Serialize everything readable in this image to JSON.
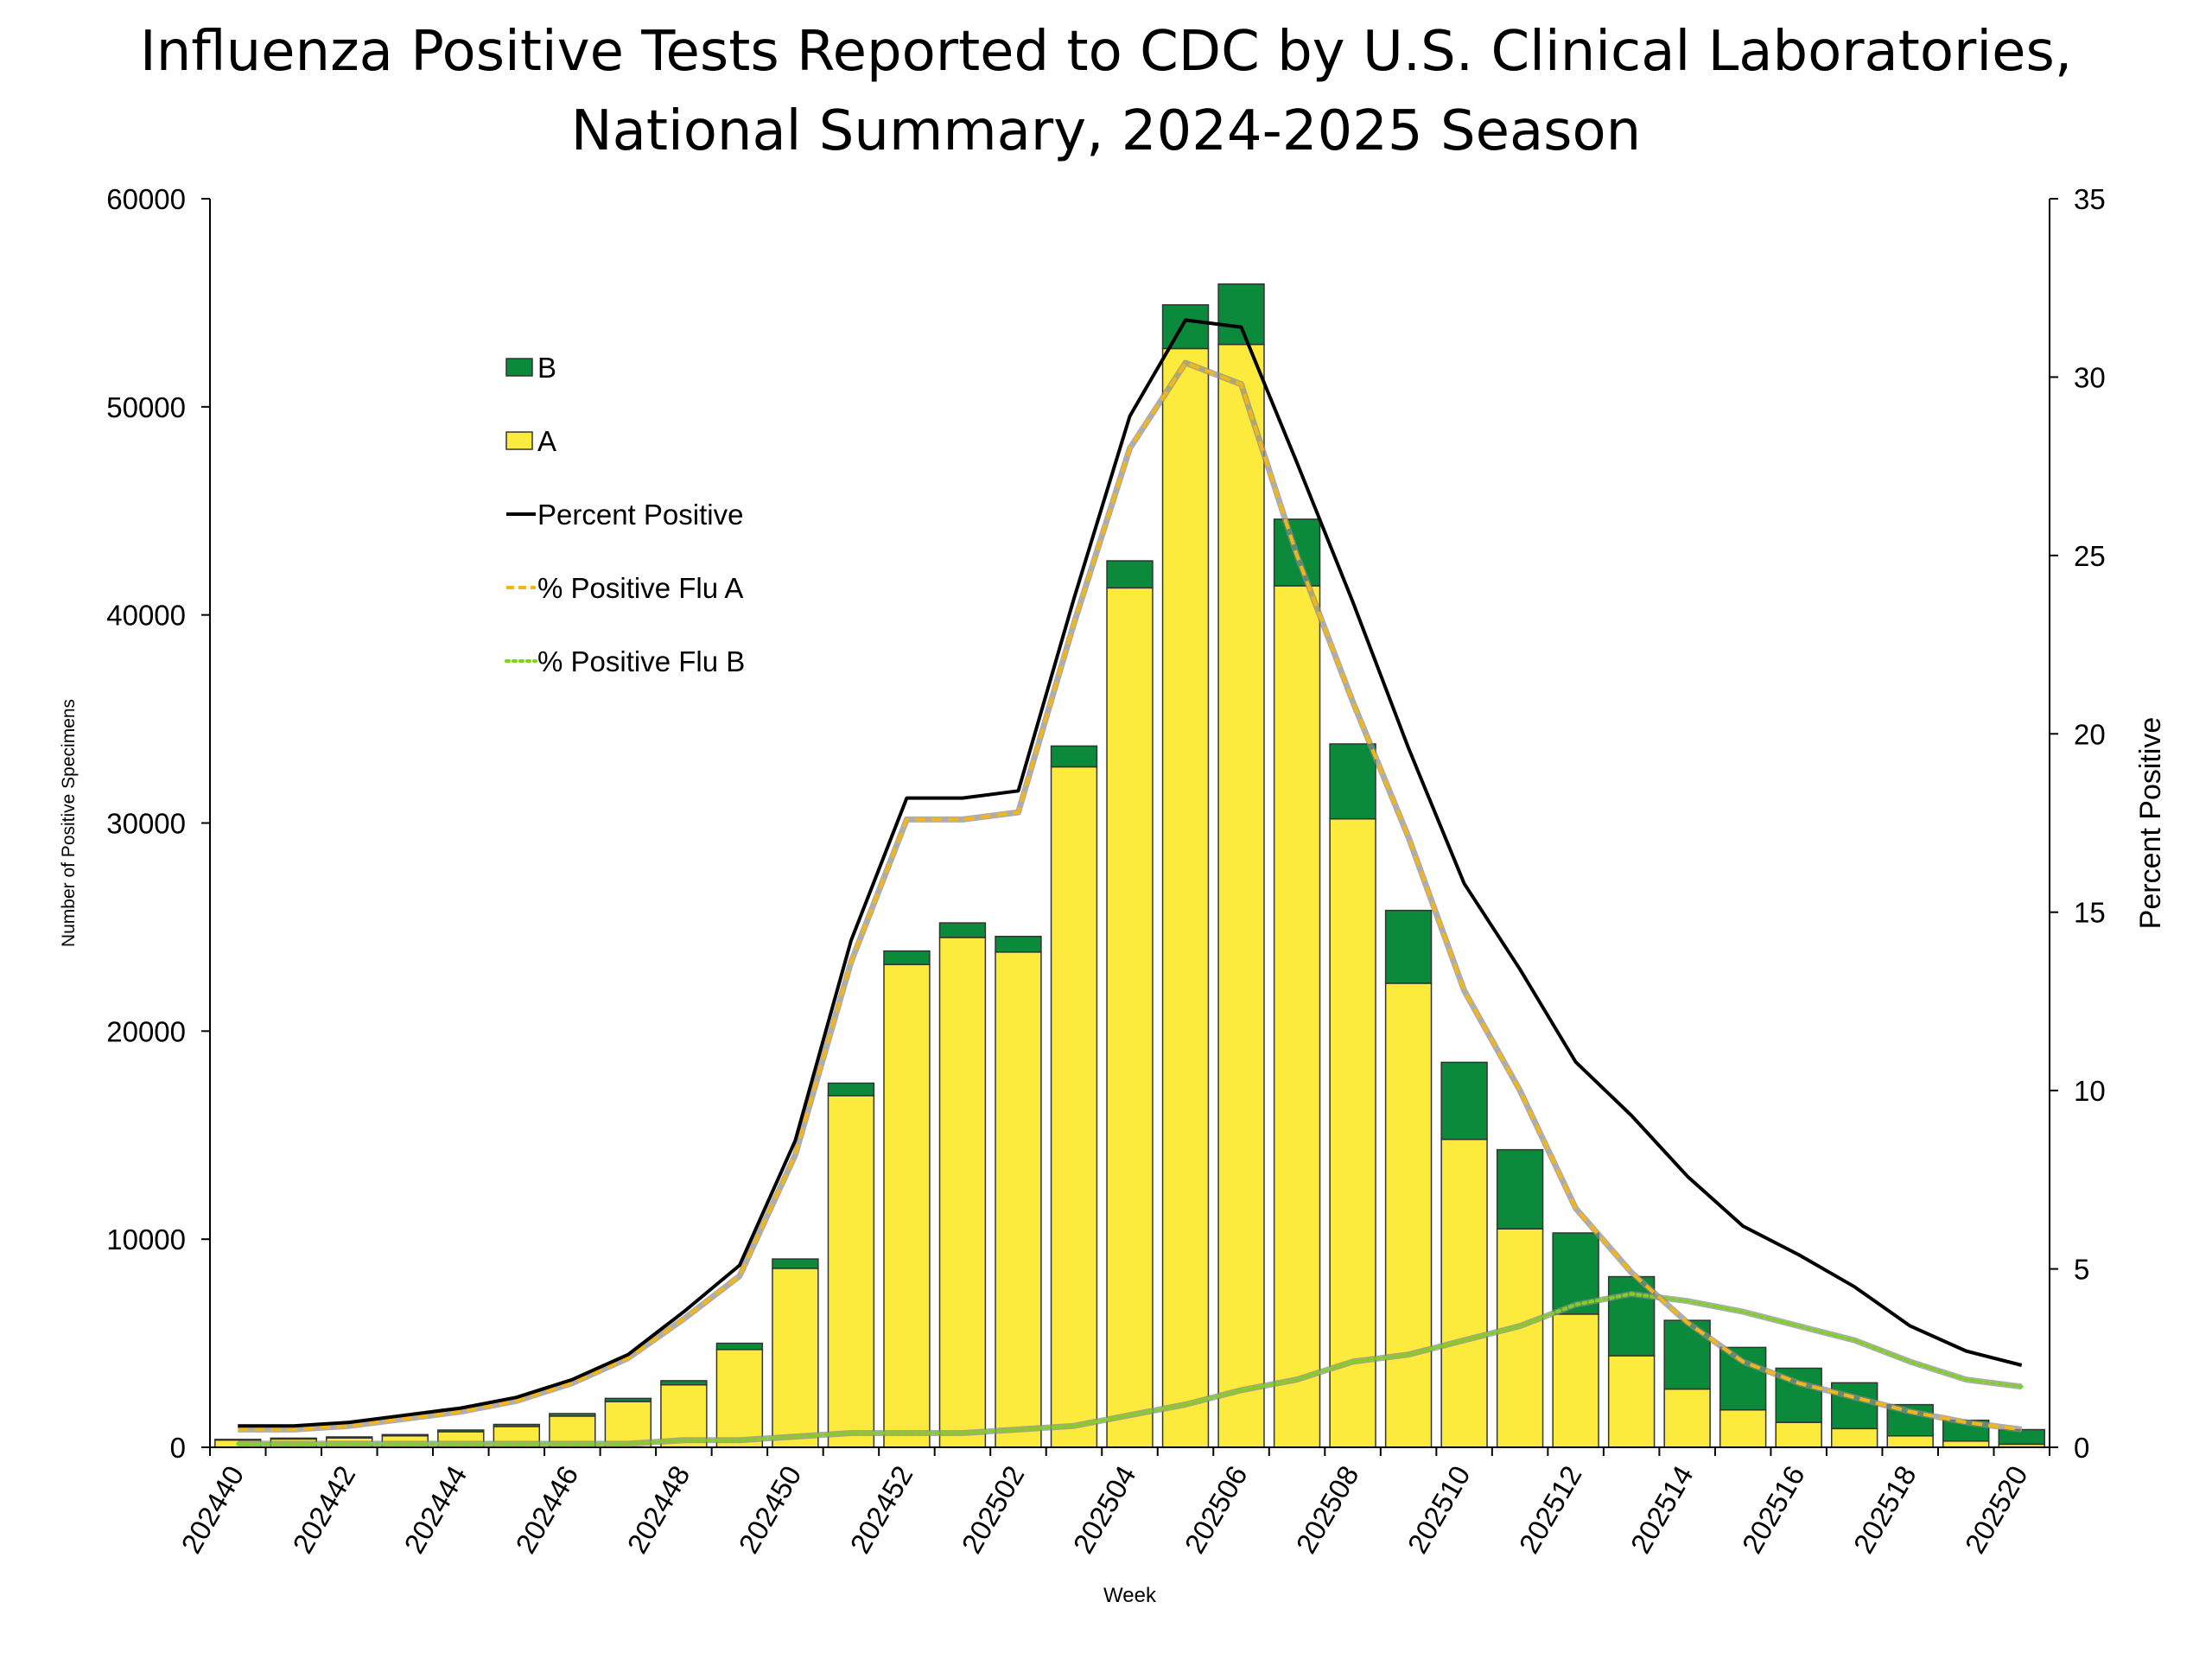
{
  "chart_data": {
    "type": "bar",
    "title_line1": "Influenza Positive Tests Reported to CDC by U.S. Clinical Laboratories,",
    "title_line2": "National Summary, 2024-2025 Season",
    "xlabel": "Week",
    "ylabel": "Number of Positive Specimens",
    "y2label": "Percent Positive",
    "ylim": [
      0,
      60000
    ],
    "y2lim": [
      0,
      35
    ],
    "yticks": [
      0,
      10000,
      20000,
      30000,
      40000,
      50000,
      60000
    ],
    "y2ticks": [
      0,
      5,
      10,
      15,
      20,
      25,
      30,
      35
    ],
    "categories": [
      "202440",
      "202441",
      "202442",
      "202443",
      "202444",
      "202445",
      "202446",
      "202447",
      "202448",
      "202449",
      "202450",
      "202451",
      "202452",
      "202501",
      "202502",
      "202503",
      "202504",
      "202505",
      "202506",
      "202507",
      "202508",
      "202509",
      "202510",
      "202511",
      "202512",
      "202513",
      "202514",
      "202515",
      "202516",
      "202517",
      "202518",
      "202519",
      "202520"
    ],
    "tick_labels": [
      "202440",
      "202442",
      "202444",
      "202446",
      "202448",
      "202450",
      "202452",
      "202502",
      "202504",
      "202506",
      "202508",
      "202510",
      "202512",
      "202514",
      "202516",
      "202518",
      "202520"
    ],
    "colors": {
      "A": "#FCEB3C",
      "B": "#0A8A3A",
      "percent": "#000000",
      "percentA": "#F2B61A",
      "percentB": "#7ED321"
    },
    "series": [
      {
        "name": "A",
        "kind": "bar",
        "values": [
          350,
          400,
          450,
          550,
          750,
          1000,
          1500,
          2200,
          3000,
          4700,
          8600,
          16900,
          23200,
          24500,
          23800,
          32700,
          41300,
          52800,
          53000,
          41400,
          30200,
          22300,
          14800,
          10500,
          6400,
          4400,
          2800,
          1800,
          1200,
          900,
          550,
          300,
          150
        ]
      },
      {
        "name": "B",
        "kind": "bar",
        "values": [
          30,
          40,
          50,
          60,
          80,
          100,
          120,
          150,
          200,
          300,
          450,
          600,
          650,
          700,
          750,
          1000,
          1300,
          2100,
          2900,
          3200,
          3600,
          3500,
          3700,
          3800,
          3900,
          3800,
          3300,
          3000,
          2600,
          2200,
          1500,
          1000,
          700
        ]
      },
      {
        "name": "Percent Positive",
        "kind": "line",
        "axis": "right",
        "values": [
          0.6,
          0.6,
          0.7,
          0.9,
          1.1,
          1.4,
          1.9,
          2.6,
          3.8,
          5.1,
          8.6,
          14.2,
          18.2,
          18.2,
          18.4,
          23.8,
          28.9,
          31.6,
          31.4,
          27.6,
          23.7,
          19.6,
          15.8,
          13.4,
          10.8,
          9.3,
          7.6,
          6.2,
          5.4,
          4.5,
          3.4,
          2.7,
          2.3
        ]
      },
      {
        "name": "% Positive Flu A",
        "kind": "line",
        "axis": "right",
        "values": [
          0.5,
          0.5,
          0.6,
          0.8,
          1.0,
          1.3,
          1.8,
          2.5,
          3.6,
          4.8,
          8.2,
          13.6,
          17.6,
          17.6,
          17.8,
          23.1,
          28.0,
          30.4,
          29.8,
          25.0,
          20.9,
          17.1,
          12.8,
          10.0,
          6.7,
          4.9,
          3.5,
          2.4,
          1.8,
          1.4,
          1.0,
          0.7,
          0.5
        ]
      },
      {
        "name": "% Positive Flu B",
        "kind": "line",
        "axis": "right",
        "values": [
          0.1,
          0.1,
          0.1,
          0.1,
          0.1,
          0.1,
          0.1,
          0.1,
          0.2,
          0.2,
          0.3,
          0.4,
          0.4,
          0.4,
          0.5,
          0.6,
          0.9,
          1.2,
          1.6,
          1.9,
          2.4,
          2.6,
          3.0,
          3.4,
          4.0,
          4.3,
          4.1,
          3.8,
          3.4,
          3.0,
          2.4,
          1.9,
          1.7
        ]
      }
    ],
    "legend": [
      {
        "label": "B",
        "kind": "box",
        "color": "#0A8A3A"
      },
      {
        "label": "A",
        "kind": "box",
        "color": "#FCEB3C"
      },
      {
        "label": "Percent Positive",
        "kind": "solid",
        "color": "#000000"
      },
      {
        "label": "% Positive Flu A",
        "kind": "dash",
        "color": "#F2B61A"
      },
      {
        "label": "% Positive Flu B",
        "kind": "dot",
        "color": "#7ED321"
      }
    ],
    "legend_position": "upper-left"
  }
}
